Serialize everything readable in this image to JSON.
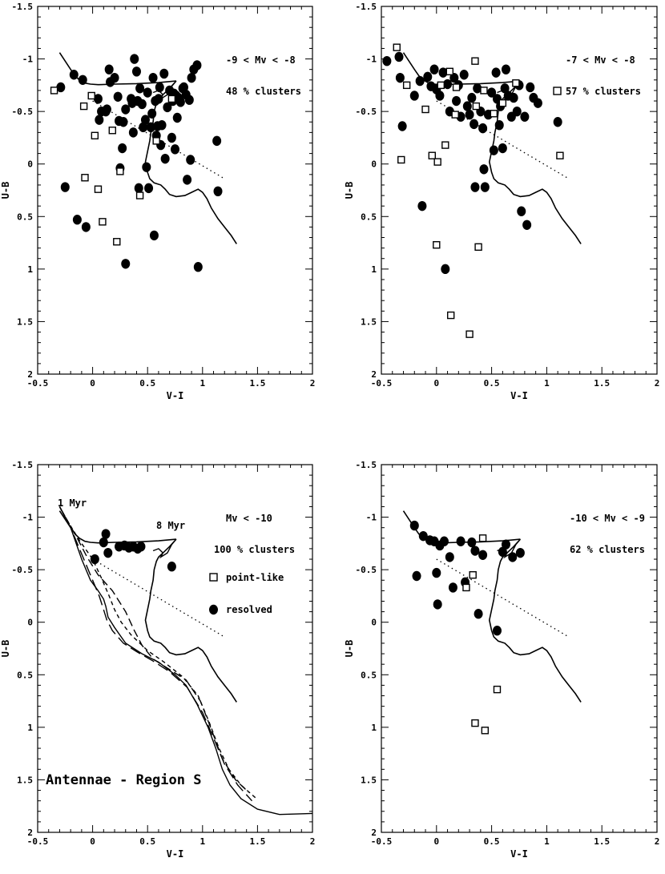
{
  "chart_data": [
    {
      "type": "scatter",
      "xlabel": "V-I",
      "ylabel": "U-B",
      "xlim": [
        -0.5,
        2
      ],
      "ylim": [
        2,
        -1.5
      ],
      "xticks": [
        "-0.5",
        "0",
        "0.5",
        "1",
        "1.5",
        "2"
      ],
      "yticks": [
        "-1.5",
        "-1",
        "-0.5",
        "0",
        "0.5",
        "1",
        "1.5",
        "2"
      ],
      "annotations": [
        "-9 < Mv < -8",
        "48 % clusters"
      ],
      "series": [
        {
          "marker": "filled-circle",
          "points": [
            [
              -0.29,
              -0.73
            ],
            [
              -0.25,
              0.22
            ],
            [
              -0.17,
              -0.85
            ],
            [
              -0.14,
              0.53
            ],
            [
              -0.09,
              -0.8
            ],
            [
              -0.06,
              0.6
            ],
            [
              0.05,
              -0.62
            ],
            [
              0.06,
              -0.42
            ],
            [
              0.08,
              -0.5
            ],
            [
              0.12,
              -0.5
            ],
            [
              0.13,
              -0.52
            ],
            [
              0.15,
              -0.9
            ],
            [
              0.16,
              -0.78
            ],
            [
              0.2,
              -0.82
            ],
            [
              0.23,
              -0.64
            ],
            [
              0.24,
              -0.41
            ],
            [
              0.25,
              0.04
            ],
            [
              0.27,
              -0.15
            ],
            [
              0.28,
              -0.4
            ],
            [
              0.3,
              0.95
            ],
            [
              0.35,
              -0.62
            ],
            [
              0.36,
              -0.58
            ],
            [
              0.37,
              -0.3
            ],
            [
              0.38,
              -1.0
            ],
            [
              0.4,
              -0.88
            ],
            [
              0.41,
              -0.6
            ],
            [
              0.42,
              0.23
            ],
            [
              0.43,
              -0.72
            ],
            [
              0.45,
              -0.57
            ],
            [
              0.46,
              -0.35
            ],
            [
              0.48,
              -0.42
            ],
            [
              0.49,
              0.03
            ],
            [
              0.5,
              -0.68
            ],
            [
              0.51,
              0.23
            ],
            [
              0.53,
              -0.35
            ],
            [
              0.54,
              -0.48
            ],
            [
              0.55,
              -0.82
            ],
            [
              0.56,
              0.68
            ],
            [
              0.57,
              -0.6
            ],
            [
              0.58,
              -0.27
            ],
            [
              0.59,
              -0.36
            ],
            [
              0.6,
              -0.62
            ],
            [
              0.61,
              -0.73
            ],
            [
              0.62,
              -0.18
            ],
            [
              0.63,
              -0.37
            ],
            [
              0.65,
              -0.86
            ],
            [
              0.66,
              -0.05
            ],
            [
              0.7,
              -0.7
            ],
            [
              0.72,
              -0.25
            ],
            [
              0.73,
              -0.6
            ],
            [
              0.74,
              -0.67
            ],
            [
              0.75,
              -0.14
            ],
            [
              0.76,
              -0.65
            ],
            [
              0.78,
              -0.63
            ],
            [
              0.8,
              -0.59
            ],
            [
              0.82,
              -0.72
            ],
            [
              0.83,
              -0.73
            ],
            [
              0.85,
              -0.66
            ],
            [
              0.86,
              0.15
            ],
            [
              0.88,
              -0.61
            ],
            [
              0.89,
              -0.04
            ],
            [
              0.9,
              -0.82
            ],
            [
              0.92,
              -0.9
            ],
            [
              0.95,
              -0.94
            ],
            [
              0.96,
              0.98
            ],
            [
              1.13,
              -0.22
            ],
            [
              1.14,
              0.26
            ],
            [
              0.68,
              -0.54
            ],
            [
              0.77,
              -0.44
            ],
            [
              0.3,
              -0.52
            ]
          ]
        },
        {
          "marker": "open-square",
          "points": [
            [
              -0.35,
              -0.7
            ],
            [
              -0.08,
              -0.55
            ],
            [
              -0.07,
              0.13
            ],
            [
              -0.01,
              -0.65
            ],
            [
              0.02,
              -0.27
            ],
            [
              0.05,
              0.24
            ],
            [
              0.09,
              0.55
            ],
            [
              0.18,
              -0.32
            ],
            [
              0.22,
              0.74
            ],
            [
              0.25,
              0.07
            ],
            [
              0.58,
              -0.22
            ],
            [
              0.72,
              -0.62
            ],
            [
              0.43,
              0.3
            ]
          ]
        }
      ],
      "models": true
    },
    {
      "type": "scatter",
      "xlabel": "V-I",
      "ylabel": "U-B",
      "xlim": [
        -0.5,
        2
      ],
      "ylim": [
        2,
        -1.5
      ],
      "xticks": [
        "-0.5",
        "0",
        "0.5",
        "1",
        "1.5",
        "2"
      ],
      "yticks": [
        "-1.5",
        "-1",
        "-0.5",
        "0",
        "0.5",
        "1",
        "1.5",
        "2"
      ],
      "annotations": [
        "-7 < Mv < -8",
        "57 % clusters"
      ],
      "series": [
        {
          "marker": "filled-circle",
          "points": [
            [
              -0.45,
              -0.98
            ],
            [
              -0.34,
              -1.02
            ],
            [
              -0.33,
              -0.82
            ],
            [
              -0.31,
              -0.36
            ],
            [
              -0.2,
              -0.65
            ],
            [
              -0.15,
              -0.79
            ],
            [
              -0.13,
              0.4
            ],
            [
              -0.08,
              -0.83
            ],
            [
              -0.05,
              -0.74
            ],
            [
              -0.02,
              -0.9
            ],
            [
              0.0,
              -0.71
            ],
            [
              0.03,
              -0.65
            ],
            [
              0.06,
              -0.87
            ],
            [
              0.08,
              1.0
            ],
            [
              0.1,
              -0.76
            ],
            [
              0.12,
              -0.5
            ],
            [
              0.16,
              -0.82
            ],
            [
              0.18,
              -0.6
            ],
            [
              0.2,
              -0.75
            ],
            [
              0.22,
              -0.45
            ],
            [
              0.25,
              -0.85
            ],
            [
              0.28,
              -0.55
            ],
            [
              0.3,
              -0.47
            ],
            [
              0.32,
              -0.63
            ],
            [
              0.34,
              -0.38
            ],
            [
              0.35,
              0.22
            ],
            [
              0.37,
              -0.72
            ],
            [
              0.4,
              -0.5
            ],
            [
              0.42,
              -0.34
            ],
            [
              0.43,
              0.05
            ],
            [
              0.44,
              0.22
            ],
            [
              0.47,
              -0.47
            ],
            [
              0.5,
              -0.68
            ],
            [
              0.52,
              -0.13
            ],
            [
              0.54,
              -0.87
            ],
            [
              0.55,
              -0.62
            ],
            [
              0.57,
              -0.37
            ],
            [
              0.6,
              -0.15
            ],
            [
              0.62,
              -0.72
            ],
            [
              0.63,
              -0.9
            ],
            [
              0.65,
              -0.65
            ],
            [
              0.68,
              -0.45
            ],
            [
              0.7,
              -0.63
            ],
            [
              0.73,
              -0.5
            ],
            [
              0.75,
              -0.75
            ],
            [
              0.77,
              0.45
            ],
            [
              0.8,
              -0.45
            ],
            [
              0.82,
              0.58
            ],
            [
              0.85,
              -0.73
            ],
            [
              0.88,
              -0.63
            ],
            [
              0.92,
              -0.58
            ],
            [
              1.1,
              -0.4
            ],
            [
              0.58,
              -0.55
            ]
          ]
        },
        {
          "marker": "open-square",
          "points": [
            [
              -0.36,
              -1.11
            ],
            [
              -0.32,
              -0.04
            ],
            [
              -0.27,
              -0.75
            ],
            [
              -0.1,
              -0.52
            ],
            [
              -0.04,
              -0.08
            ],
            [
              0.0,
              0.77
            ],
            [
              0.01,
              -0.02
            ],
            [
              0.04,
              -0.75
            ],
            [
              0.08,
              -0.18
            ],
            [
              0.12,
              -0.88
            ],
            [
              0.13,
              1.44
            ],
            [
              0.17,
              -0.47
            ],
            [
              0.18,
              -0.73
            ],
            [
              0.3,
              1.62
            ],
            [
              0.35,
              -0.98
            ],
            [
              0.36,
              -0.55
            ],
            [
              0.38,
              0.79
            ],
            [
              0.43,
              -0.7
            ],
            [
              0.52,
              -0.48
            ],
            [
              0.6,
              -0.58
            ],
            [
              0.72,
              -0.77
            ],
            [
              1.12,
              -0.08
            ]
          ]
        }
      ],
      "models": true
    },
    {
      "type": "line",
      "xlabel": "V-I",
      "ylabel": "U-B",
      "xlim": [
        -0.5,
        2
      ],
      "ylim": [
        2,
        -1.5
      ],
      "xticks": [
        "-0.5",
        "0",
        "0.5",
        "1",
        "1.5",
        "2"
      ],
      "yticks": [
        "-1.5",
        "-1",
        "-0.5",
        "0",
        "0.5",
        "1",
        "1.5",
        "2"
      ],
      "annotations": [
        "1 Myr",
        "8 Myr",
        "Mv < -10",
        "100 % clusters",
        "Antennae - Region S"
      ],
      "legend": [
        {
          "marker": "open-square",
          "label": "point-like"
        },
        {
          "marker": "filled-circle",
          "label": "resolved"
        }
      ],
      "series": [
        {
          "marker": "filled-circle",
          "points": [
            [
              0.02,
              -0.6
            ],
            [
              0.1,
              -0.76
            ],
            [
              0.12,
              -0.84
            ],
            [
              0.14,
              -0.66
            ],
            [
              0.24,
              -0.72
            ],
            [
              0.29,
              -0.73
            ],
            [
              0.33,
              -0.71
            ],
            [
              0.37,
              -0.72
            ],
            [
              0.41,
              -0.7
            ],
            [
              0.44,
              -0.72
            ],
            [
              0.72,
              -0.53
            ]
          ]
        }
      ],
      "models": true,
      "extra_tracks": true
    },
    {
      "type": "scatter",
      "xlabel": "V-I",
      "ylabel": "U-B",
      "xlim": [
        -0.5,
        2
      ],
      "ylim": [
        2,
        -1.5
      ],
      "xticks": [
        "-0.5",
        "0",
        "0.5",
        "1",
        "1.5",
        "2"
      ],
      "yticks": [
        "-1.5",
        "-1",
        "-0.5",
        "0",
        "0.5",
        "1",
        "1.5",
        "2"
      ],
      "annotations": [
        "-10 < Mv < -9",
        "62 % clusters"
      ],
      "series": [
        {
          "marker": "filled-circle",
          "points": [
            [
              -0.2,
              -0.92
            ],
            [
              -0.18,
              -0.44
            ],
            [
              -0.12,
              -0.82
            ],
            [
              -0.06,
              -0.78
            ],
            [
              -0.02,
              -0.77
            ],
            [
              0.0,
              -0.47
            ],
            [
              0.01,
              -0.17
            ],
            [
              0.03,
              -0.73
            ],
            [
              0.07,
              -0.77
            ],
            [
              0.12,
              -0.62
            ],
            [
              0.15,
              -0.33
            ],
            [
              0.22,
              -0.77
            ],
            [
              0.26,
              -0.38
            ],
            [
              0.32,
              -0.76
            ],
            [
              0.35,
              -0.68
            ],
            [
              0.38,
              -0.08
            ],
            [
              0.42,
              -0.64
            ],
            [
              0.55,
              0.08
            ],
            [
              0.6,
              -0.67
            ],
            [
              0.63,
              -0.74
            ],
            [
              0.69,
              -0.62
            ],
            [
              0.76,
              -0.66
            ]
          ]
        },
        {
          "marker": "open-square",
          "points": [
            [
              0.27,
              -0.33
            ],
            [
              0.33,
              -0.45
            ],
            [
              0.35,
              0.96
            ],
            [
              0.42,
              -0.8
            ],
            [
              0.44,
              1.03
            ],
            [
              0.55,
              0.64
            ]
          ]
        }
      ],
      "models": true
    }
  ]
}
